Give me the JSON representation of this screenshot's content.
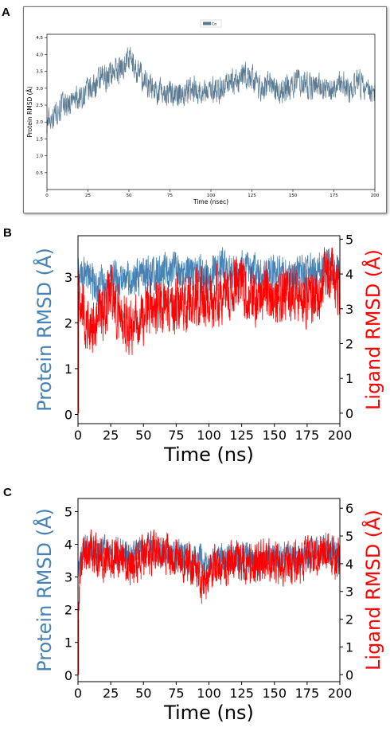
{
  "panels": [
    {
      "label": "A"
    },
    {
      "label": "B"
    },
    {
      "label": "C"
    }
  ],
  "colors": {
    "protein_a": "#5a7a92",
    "protein": "#4682b4",
    "ligand": "#ff0000",
    "axis": "#000000"
  },
  "chart_data": [
    {
      "type": "line",
      "panel": "A",
      "xlabel": "Time (nsec)",
      "ylabel": "Protein RMSD (Å)",
      "xlim": [
        0,
        200
      ],
      "ylim": [
        0,
        4.6
      ],
      "xticks": [
        0,
        25,
        50,
        75,
        100,
        125,
        150,
        175,
        200
      ],
      "yticks": [
        0.5,
        1.0,
        1.5,
        2.0,
        2.5,
        3.0,
        3.5,
        4.0,
        4.5
      ],
      "legend": "top-center",
      "series": [
        {
          "name": "Cα",
          "color": "#5a7a92",
          "x": [
            0,
            5,
            10,
            15,
            20,
            25,
            30,
            35,
            40,
            45,
            50,
            55,
            60,
            65,
            70,
            75,
            80,
            85,
            90,
            95,
            100,
            105,
            110,
            115,
            120,
            125,
            130,
            135,
            140,
            145,
            150,
            155,
            160,
            165,
            170,
            175,
            180,
            185,
            190,
            195,
            200
          ],
          "y": [
            2.0,
            2.3,
            2.5,
            2.6,
            2.7,
            2.9,
            3.1,
            3.3,
            3.5,
            3.6,
            3.9,
            3.5,
            3.2,
            3.0,
            2.9,
            2.9,
            2.8,
            2.9,
            3.0,
            2.9,
            3.0,
            2.9,
            3.2,
            3.1,
            3.4,
            3.3,
            3.0,
            3.1,
            2.9,
            3.0,
            3.1,
            3.2,
            3.0,
            3.2,
            2.9,
            3.1,
            3.2,
            2.9,
            3.1,
            3.0,
            3.0
          ],
          "noise": 0.35
        }
      ]
    },
    {
      "type": "line",
      "panel": "B",
      "xlabel": "Time (ns)",
      "ylabel_left": "Protein RMSD (Å)",
      "ylabel_right": "Ligand RMSD (Å)",
      "xlim": [
        0,
        200
      ],
      "ylim_left": [
        -0.2,
        3.9
      ],
      "ylim_right": [
        -0.3,
        5.1
      ],
      "xticks": [
        0,
        25,
        50,
        75,
        100,
        125,
        150,
        175,
        200
      ],
      "yticks_left": [
        0,
        1,
        2,
        3
      ],
      "yticks_right": [
        0,
        1,
        2,
        3,
        4,
        5
      ],
      "series": [
        {
          "name": "Protein",
          "axis": "left",
          "color": "#4682b4",
          "x": [
            0,
            5,
            10,
            15,
            20,
            25,
            30,
            40,
            50,
            60,
            70,
            75,
            80,
            90,
            100,
            110,
            120,
            130,
            140,
            150,
            160,
            170,
            180,
            190,
            200
          ],
          "y": [
            3.0,
            3.1,
            2.9,
            2.8,
            2.8,
            2.9,
            3.0,
            2.9,
            3.0,
            3.0,
            3.1,
            3.2,
            3.0,
            3.1,
            3.0,
            3.2,
            3.1,
            3.2,
            3.0,
            3.1,
            3.0,
            3.1,
            3.1,
            3.2,
            3.0
          ],
          "noise": 0.35
        },
        {
          "name": "Ligand",
          "axis": "right",
          "color": "#ff0000",
          "x": [
            0,
            3,
            6,
            10,
            15,
            20,
            25,
            30,
            35,
            40,
            45,
            50,
            55,
            60,
            70,
            80,
            90,
            100,
            110,
            120,
            125,
            130,
            140,
            150,
            160,
            170,
            180,
            185,
            190,
            195,
            200
          ],
          "y": [
            3.5,
            3.0,
            2.7,
            2.5,
            2.6,
            3.0,
            3.6,
            2.9,
            2.7,
            2.4,
            2.6,
            2.8,
            3.0,
            3.0,
            3.1,
            3.2,
            3.3,
            3.2,
            3.4,
            3.7,
            3.8,
            3.3,
            3.4,
            3.3,
            3.5,
            3.4,
            3.3,
            3.5,
            4.1,
            4.0,
            3.6
          ],
          "noise": 0.7
        }
      ]
    },
    {
      "type": "line",
      "panel": "C",
      "xlabel": "Time (ns)",
      "ylabel_left": "Protein RMSD (Å)",
      "ylabel_right": "Ligand RMSD (Å)",
      "xlim": [
        0,
        200
      ],
      "ylim_left": [
        -0.2,
        5.4
      ],
      "ylim_right": [
        -0.25,
        6.35
      ],
      "xticks": [
        0,
        25,
        50,
        75,
        100,
        125,
        150,
        175,
        200
      ],
      "yticks_left": [
        0,
        1,
        2,
        3,
        4,
        5
      ],
      "yticks_right": [
        0,
        1,
        2,
        3,
        4,
        5,
        6
      ],
      "series": [
        {
          "name": "Protein",
          "axis": "left",
          "color": "#4682b4",
          "x": [
            0,
            3,
            6,
            10,
            20,
            30,
            40,
            50,
            60,
            70,
            80,
            90,
            100,
            110,
            120,
            130,
            140,
            150,
            160,
            170,
            180,
            190,
            200
          ],
          "y": [
            3.2,
            3.7,
            3.9,
            3.8,
            3.9,
            3.7,
            3.6,
            3.9,
            3.8,
            3.7,
            3.6,
            3.5,
            3.4,
            3.5,
            3.6,
            3.6,
            3.5,
            3.6,
            3.6,
            3.5,
            3.7,
            3.9,
            3.6
          ],
          "noise": 0.4
        },
        {
          "name": "Ligand",
          "axis": "right",
          "color": "#ff0000",
          "x": [
            0,
            2,
            5,
            10,
            20,
            30,
            40,
            50,
            60,
            70,
            80,
            90,
            95,
            100,
            110,
            120,
            130,
            140,
            150,
            160,
            170,
            180,
            190,
            200
          ],
          "y": [
            2.0,
            3.8,
            4.3,
            4.4,
            4.2,
            4.3,
            3.9,
            4.2,
            4.5,
            4.3,
            4.1,
            4.0,
            3.3,
            3.7,
            4.0,
            4.1,
            4.0,
            4.1,
            4.1,
            4.0,
            4.1,
            4.2,
            4.4,
            4.1
          ],
          "noise": 0.65
        }
      ]
    }
  ]
}
